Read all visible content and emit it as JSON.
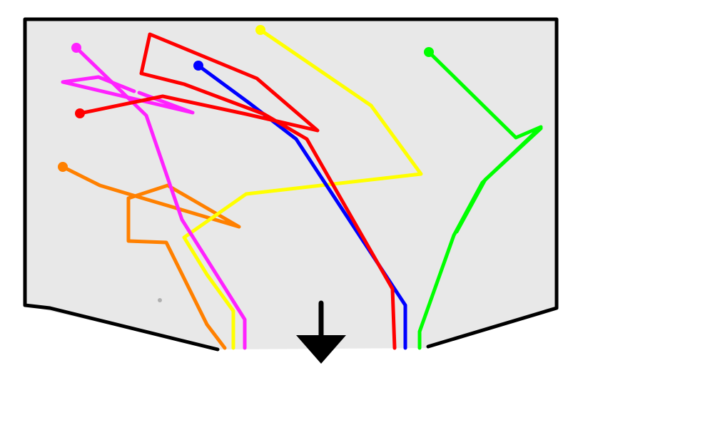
{
  "diagram": {
    "colors": {
      "background": "#ffffff",
      "panel_fill": "#e8e8e8",
      "outline": "#000000",
      "arrow": "#000000"
    },
    "paths": [
      {
        "id": "magenta",
        "color": "#ff22ff"
      },
      {
        "id": "red",
        "color": "#ff0000"
      },
      {
        "id": "blue",
        "color": "#0000ff"
      },
      {
        "id": "yellow",
        "color": "#ffff00"
      },
      {
        "id": "green",
        "color": "#00ff00"
      },
      {
        "id": "orange",
        "color": "#ff8000"
      }
    ],
    "exit_arrow": {
      "direction": "down",
      "icon": "arrow-down-icon"
    }
  }
}
